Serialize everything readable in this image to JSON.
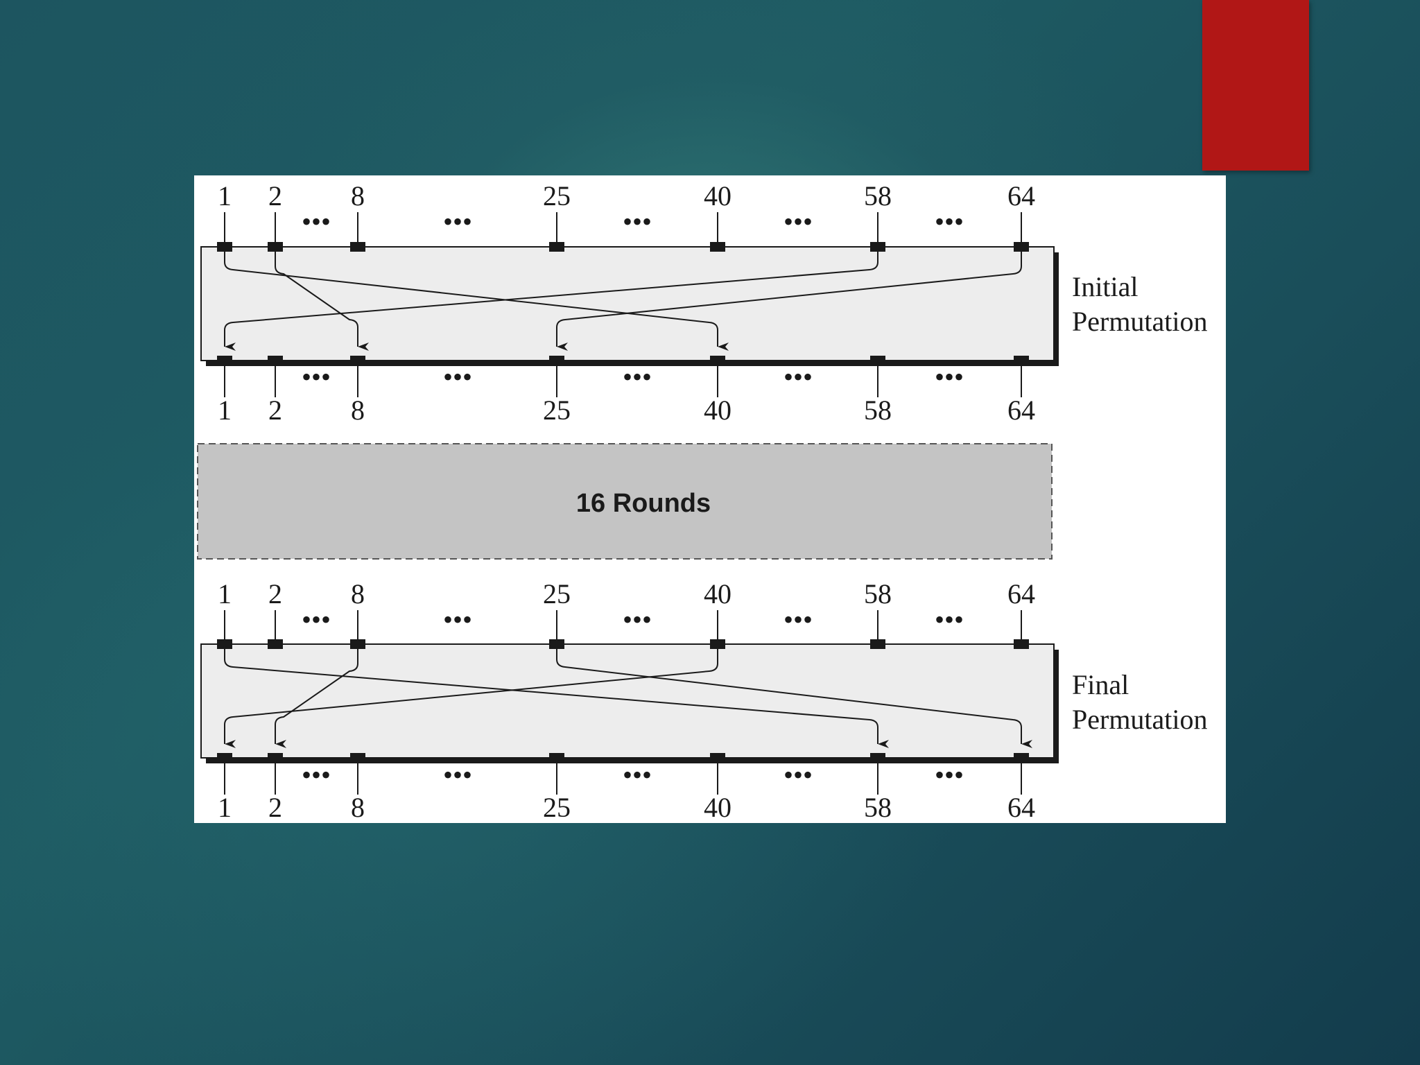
{
  "colors": {
    "accent_bar": "#b11716",
    "box_fill": "#ededed",
    "rounds_fill": "#c4c4c4",
    "line": "#1a1a1a"
  },
  "diagram": {
    "positions": [
      "1",
      "2",
      "8",
      "25",
      "40",
      "58",
      "64"
    ],
    "ellipsis": "•••",
    "initial_permutation": {
      "label_line1": "Initial",
      "label_line2": "Permutation",
      "mappings": [
        {
          "from": "1",
          "to": "40"
        },
        {
          "from": "2",
          "to": "8"
        },
        {
          "from": "58",
          "to": "1"
        },
        {
          "from": "64",
          "to": "25"
        }
      ]
    },
    "rounds": {
      "label": "16 Rounds"
    },
    "final_permutation": {
      "label_line1": "Final",
      "label_line2": "Permutation",
      "mappings": [
        {
          "from": "1",
          "to": "58"
        },
        {
          "from": "8",
          "to": "2"
        },
        {
          "from": "25",
          "to": "64"
        },
        {
          "from": "40",
          "to": "1"
        }
      ]
    }
  }
}
